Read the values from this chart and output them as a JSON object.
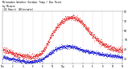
{
  "title_line1": "Milwaukee Weather Outdoor Temp / Dew Point",
  "title_line2": "by Minute",
  "title_line3": "(24 Hours) (Alternate)",
  "bg_color": "#ffffff",
  "plot_bg_color": "#ffffff",
  "grid_color": "#aaaaaa",
  "text_color": "#000000",
  "red_color": "#dd0000",
  "blue_color": "#0000cc",
  "tick_color": "#000000",
  "ylim": [
    25,
    80
  ],
  "yticks": [
    30,
    40,
    50,
    60,
    70,
    80
  ],
  "xlim": [
    0,
    1439
  ],
  "temp_x": [
    0,
    30,
    60,
    90,
    120,
    150,
    180,
    210,
    240,
    270,
    300,
    330,
    360,
    390,
    420,
    450,
    480,
    510,
    540,
    570,
    600,
    630,
    660,
    690,
    720,
    750,
    780,
    810,
    840,
    870,
    900,
    930,
    960,
    990,
    1020,
    1050,
    1080,
    1110,
    1140,
    1170,
    1200,
    1230,
    1260,
    1290,
    1320,
    1350,
    1380,
    1410,
    1439
  ],
  "temp_y": [
    40,
    39,
    38,
    37,
    36,
    35,
    34,
    34,
    33,
    33,
    33,
    32,
    32,
    33,
    34,
    35,
    38,
    42,
    47,
    52,
    57,
    61,
    65,
    68,
    70,
    72,
    73,
    74,
    74,
    73,
    72,
    70,
    67,
    64,
    61,
    58,
    55,
    52,
    50,
    48,
    46,
    44,
    43,
    42,
    41,
    40,
    40,
    39,
    39
  ],
  "dew_x": [
    0,
    30,
    60,
    90,
    120,
    150,
    180,
    210,
    240,
    270,
    300,
    330,
    360,
    390,
    420,
    450,
    480,
    510,
    540,
    570,
    600,
    630,
    660,
    690,
    720,
    750,
    780,
    810,
    840,
    870,
    900,
    930,
    960,
    990,
    1020,
    1050,
    1080,
    1110,
    1140,
    1170,
    1200,
    1230,
    1260,
    1290,
    1320,
    1350,
    1380,
    1410,
    1439
  ],
  "dew_y": [
    32,
    31,
    31,
    30,
    30,
    29,
    29,
    28,
    28,
    27,
    27,
    27,
    27,
    28,
    28,
    29,
    30,
    32,
    34,
    36,
    38,
    40,
    41,
    42,
    43,
    43,
    43,
    43,
    43,
    42,
    41,
    40,
    39,
    38,
    38,
    37,
    37,
    36,
    36,
    35,
    35,
    34,
    34,
    34,
    33,
    33,
    33,
    32,
    32
  ],
  "xtick_positions": [
    0,
    120,
    240,
    360,
    480,
    600,
    720,
    840,
    960,
    1080,
    1200,
    1320,
    1439
  ],
  "xtick_labels": [
    "12a",
    "2",
    "4",
    "6",
    "8",
    "10",
    "12p",
    "2",
    "4",
    "6",
    "8",
    "10",
    "12"
  ]
}
